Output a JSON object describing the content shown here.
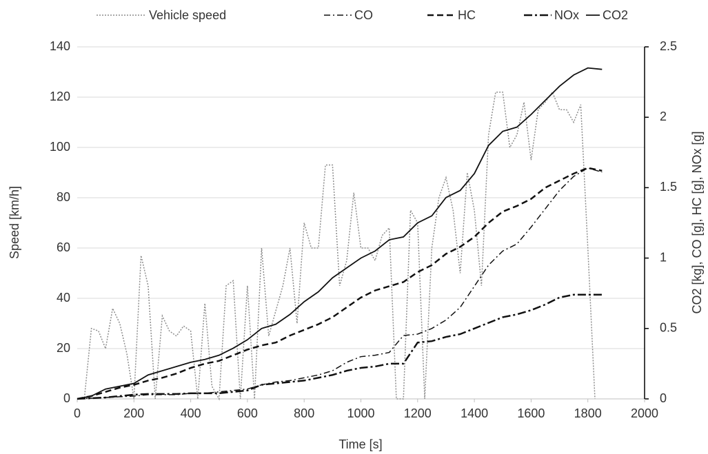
{
  "chart_data": {
    "type": "line",
    "x_label": "Time [s]",
    "y_label": "Speed [km/h]",
    "y2_label": "CO2 [kg], CO [g], HC [g], NOx [g]",
    "xlim": [
      0,
      2000
    ],
    "xticks": [
      0,
      200,
      400,
      600,
      800,
      1000,
      1200,
      1400,
      1600,
      1800,
      2000
    ],
    "ylim": [
      0,
      140
    ],
    "yticks": [
      0,
      20,
      40,
      60,
      80,
      100,
      120,
      140
    ],
    "y2lim": [
      0,
      2.5
    ],
    "y2ticks": [
      0,
      0.5,
      1,
      1.5,
      2,
      2.5
    ],
    "grid": true,
    "legend": "top",
    "x": [
      0,
      50,
      100,
      150,
      200,
      250,
      300,
      350,
      400,
      450,
      500,
      550,
      600,
      650,
      700,
      750,
      800,
      850,
      900,
      950,
      1000,
      1050,
      1100,
      1150,
      1200,
      1250,
      1300,
      1350,
      1400,
      1450,
      1500,
      1550,
      1600,
      1650,
      1700,
      1750,
      1800,
      1850
    ],
    "series": [
      {
        "name": "Vehicle speed",
        "color": "#8c8c8c",
        "style": "dotted",
        "x": [
          0,
          25,
          50,
          75,
          100,
          125,
          150,
          175,
          200,
          225,
          250,
          275,
          300,
          325,
          350,
          375,
          400,
          425,
          450,
          475,
          500,
          525,
          550,
          575,
          600,
          625,
          650,
          675,
          700,
          725,
          750,
          775,
          800,
          825,
          850,
          875,
          900,
          925,
          950,
          975,
          1000,
          1025,
          1050,
          1075,
          1100,
          1125,
          1150,
          1175,
          1200,
          1225,
          1250,
          1275,
          1300,
          1325,
          1350,
          1375,
          1400,
          1425,
          1450,
          1475,
          1500,
          1525,
          1550,
          1575,
          1600,
          1625,
          1650,
          1675,
          1700,
          1725,
          1750,
          1775,
          1800,
          1825
        ],
        "values": [
          0,
          0,
          28,
          27,
          20,
          36,
          30,
          18,
          0,
          57,
          45,
          0,
          33,
          27,
          25,
          29,
          27,
          0,
          38,
          5,
          0,
          45,
          47,
          0,
          45,
          0,
          60,
          25,
          35,
          45,
          60,
          30,
          70,
          60,
          60,
          93,
          93,
          45,
          55,
          82,
          60,
          60,
          55,
          65,
          68,
          0,
          0,
          75,
          70,
          0,
          60,
          80,
          88,
          75,
          50,
          90,
          75,
          45,
          105,
          122,
          122,
          100,
          105,
          118,
          95,
          115,
          118,
          122,
          115,
          115,
          110,
          117,
          60,
          0
        ]
      },
      {
        "name": "CO",
        "color": "#111111",
        "style": "dashdot",
        "axis": "y2",
        "values": [
          0,
          0.005,
          0.01,
          0.015,
          0.02,
          0.03,
          0.03,
          0.03,
          0.04,
          0.04,
          0.05,
          0.06,
          0.07,
          0.1,
          0.12,
          0.13,
          0.15,
          0.17,
          0.2,
          0.26,
          0.3,
          0.31,
          0.33,
          0.45,
          0.46,
          0.5,
          0.56,
          0.65,
          0.8,
          0.95,
          1.05,
          1.1,
          1.22,
          1.35,
          1.48,
          1.58,
          1.64,
          1.61
        ]
      },
      {
        "name": "HC",
        "color": "#111111",
        "style": "dashed",
        "axis": "y2",
        "values": [
          0,
          0.02,
          0.05,
          0.08,
          0.1,
          0.13,
          0.15,
          0.18,
          0.22,
          0.25,
          0.27,
          0.31,
          0.35,
          0.38,
          0.4,
          0.45,
          0.49,
          0.53,
          0.58,
          0.65,
          0.72,
          0.77,
          0.8,
          0.83,
          0.9,
          0.95,
          1.03,
          1.08,
          1.15,
          1.25,
          1.33,
          1.37,
          1.42,
          1.5,
          1.55,
          1.6,
          1.64,
          1.62
        ]
      },
      {
        "name": "NOx",
        "color": "#111111",
        "style": "longdashdot",
        "axis": "y2",
        "values": [
          0,
          0.005,
          0.01,
          0.02,
          0.03,
          0.035,
          0.035,
          0.035,
          0.04,
          0.04,
          0.04,
          0.05,
          0.06,
          0.1,
          0.11,
          0.12,
          0.13,
          0.15,
          0.17,
          0.2,
          0.22,
          0.23,
          0.25,
          0.25,
          0.4,
          0.41,
          0.44,
          0.46,
          0.5,
          0.54,
          0.58,
          0.6,
          0.63,
          0.67,
          0.72,
          0.74,
          0.74,
          0.74
        ]
      },
      {
        "name": "CO2",
        "color": "#111111",
        "style": "solid",
        "axis": "y2",
        "values": [
          0,
          0.02,
          0.07,
          0.09,
          0.11,
          0.17,
          0.2,
          0.23,
          0.26,
          0.28,
          0.31,
          0.36,
          0.42,
          0.5,
          0.53,
          0.6,
          0.69,
          0.76,
          0.86,
          0.93,
          1.0,
          1.05,
          1.13,
          1.15,
          1.25,
          1.3,
          1.43,
          1.48,
          1.6,
          1.8,
          1.9,
          1.93,
          2.02,
          2.12,
          2.22,
          2.3,
          2.35,
          2.34
        ]
      }
    ]
  }
}
